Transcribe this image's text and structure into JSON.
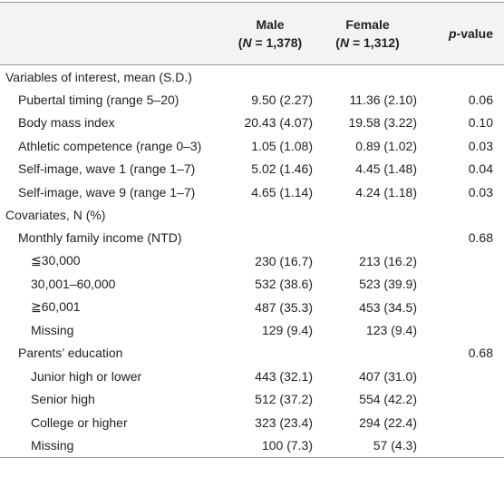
{
  "header": {
    "male": {
      "label": "Male",
      "n": [
        "(",
        "N",
        " = 1,378)"
      ]
    },
    "female": {
      "label": "Female",
      "n": [
        "(",
        "N",
        " = 1,312)"
      ]
    },
    "p_value": [
      "p",
      "-value"
    ]
  },
  "sections": [
    {
      "label": "Variables of interest, mean (S.D.)",
      "rows": [
        {
          "label": "Pubertal timing (range 5–20)",
          "male": "9.50 (2.27)",
          "female": "11.36 (2.10)",
          "p": "0.06"
        },
        {
          "label": "Body mass index",
          "male": "20.43 (4.07)",
          "female": "19.58 (3.22)",
          "p": "0.10"
        },
        {
          "label": "Athletic competence (range 0–3)",
          "male": "1.05 (1.08)",
          "female": "0.89 (1.02)",
          "p": "0.03"
        },
        {
          "label": "Self-image, wave 1 (range 1–7)",
          "male": "5.02 (1.46)",
          "female": "4.45 (1.48)",
          "p": "0.04"
        },
        {
          "label": "Self-image, wave 9 (range 1–7)",
          "male": "4.65 (1.14)",
          "female": "4.24 (1.18)",
          "p": "0.03"
        }
      ]
    },
    {
      "label": "Covariates, N (%)",
      "groups": [
        {
          "label": "Monthly family income (NTD)",
          "p": "0.68",
          "rows": [
            {
              "label": "≦30,000",
              "male": "230 (16.7)",
              "female": "213 (16.2)"
            },
            {
              "label": "30,001–60,000",
              "male": "532 (38.6)",
              "female": "523 (39.9)"
            },
            {
              "label": "≧60,001",
              "male": "487 (35.3)",
              "female": "453 (34.5)"
            },
            {
              "label": "Missing",
              "male": "129 (9.4)",
              "female": "123 (9.4)"
            }
          ]
        },
        {
          "label": "Parents’ education",
          "p": "0.68",
          "rows": [
            {
              "label": "Junior high or lower",
              "male": "443 (32.1)",
              "female": "407 (31.0)"
            },
            {
              "label": "Senior high",
              "male": "512 (37.2)",
              "female": "554 (42.2)"
            },
            {
              "label": "College or higher",
              "male": "323 (23.4)",
              "female": "294 (22.4)"
            },
            {
              "label": "Missing",
              "male": "100 (7.3)",
              "female": "57 (4.3)"
            }
          ]
        }
      ]
    }
  ]
}
